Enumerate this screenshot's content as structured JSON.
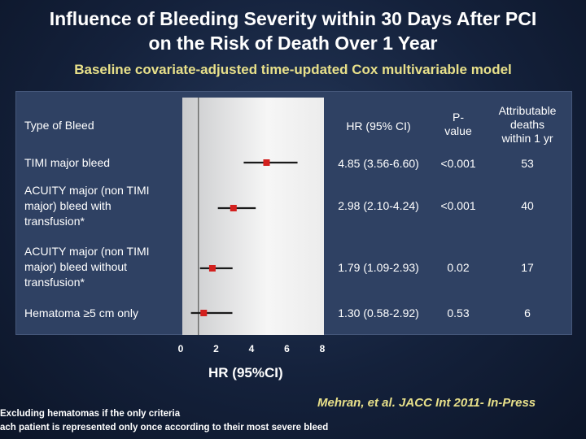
{
  "title_line1": "Influence of Bleeding Severity within 30 Days After PCI",
  "title_line2": "on the Risk of Death Over 1 Year",
  "subtitle": "Baseline covariate-adjusted time-updated Cox multivariable model",
  "table_headers": {
    "type": "Type of Bleed",
    "hr": "HR (95% CI)",
    "pvalue_l1": "P-",
    "pvalue_l2": "value",
    "attr_l1": "Attributable",
    "attr_l2": "deaths",
    "attr_l3": "within 1 yr"
  },
  "rows": [
    {
      "label_lines": [
        "TIMI major bleed"
      ],
      "hr_text": "4.85 (3.56-6.60)",
      "p": "<0.001",
      "deaths": "53"
    },
    {
      "label_lines": [
        "ACUITY major (non TIMI",
        "major) bleed with",
        "transfusion*"
      ],
      "hr_text": "2.98 (2.10-4.24)",
      "p": "<0.001",
      "deaths": "40"
    },
    {
      "label_lines": [
        "ACUITY major (non TIMI",
        "major) bleed without",
        "transfusion*"
      ],
      "hr_text": "1.79 (1.09-2.93)",
      "p": "0.02",
      "deaths": "17"
    },
    {
      "label_lines": [
        "Hematoma ≥5 cm only"
      ],
      "hr_text": "1.30 (0.58-2.92)",
      "p": "0.53",
      "deaths": "6"
    }
  ],
  "chart_data": {
    "type": "scatter",
    "subtype": "forest-plot",
    "xlabel": "HR (95%CI)",
    "xlim": [
      0,
      8
    ],
    "xticks": [
      "0",
      "2",
      "4",
      "6",
      "8"
    ],
    "reference_line": 1,
    "series": [
      {
        "label": "TIMI major bleed",
        "hr": 4.85,
        "lo": 3.56,
        "hi": 6.6
      },
      {
        "label": "ACUITY major (non TIMI major) bleed with transfusion*",
        "hr": 2.98,
        "lo": 2.1,
        "hi": 4.24
      },
      {
        "label": "ACUITY major (non TIMI major) bleed without transfusion*",
        "hr": 1.79,
        "lo": 1.09,
        "hi": 2.93
      },
      {
        "label": "Hematoma ≥5 cm only",
        "hr": 1.3,
        "lo": 0.58,
        "hi": 2.92
      }
    ],
    "colors": {
      "point": "#d3201e",
      "ci_line": "#1a1a1a",
      "ref_line": "#555555"
    }
  },
  "citation": "Mehran, et al. JACC Int 2011- In-Press",
  "footnote1": "Excluding hematomas if the only criteria",
  "footnote2": "ach patient is represented only once according to their most severe bleed"
}
